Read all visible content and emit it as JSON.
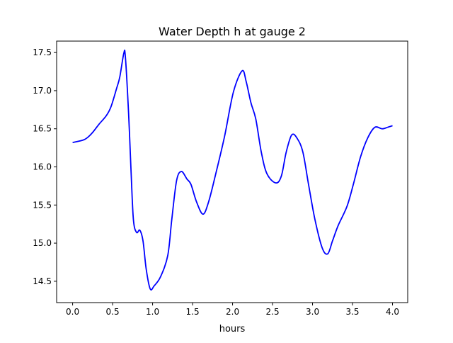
{
  "chart_data": {
    "type": "line",
    "title": "Water Depth h at gauge 2",
    "xlabel": "hours",
    "ylabel": "",
    "xlim": [
      -0.2,
      4.19
    ],
    "ylim": [
      14.22,
      17.65
    ],
    "grid": false,
    "xticks": [
      0.0,
      0.5,
      1.0,
      1.5,
      2.0,
      2.5,
      3.0,
      3.5,
      4.0
    ],
    "xtick_labels": [
      "0.0",
      "0.5",
      "1.0",
      "1.5",
      "2.0",
      "2.5",
      "3.0",
      "3.5",
      "4.0"
    ],
    "yticks": [
      14.5,
      15.0,
      15.5,
      16.0,
      16.5,
      17.0,
      17.5
    ],
    "ytick_labels": [
      "14.5",
      "15.0",
      "15.5",
      "16.0",
      "16.5",
      "17.0",
      "17.5"
    ],
    "series": [
      {
        "name": "h",
        "color": "#0000ff",
        "x": [
          0.0,
          0.15,
          0.24,
          0.33,
          0.42,
          0.48,
          0.55,
          0.59,
          0.64,
          0.66,
          0.7,
          0.73,
          0.76,
          0.8,
          0.84,
          0.88,
          0.92,
          0.97,
          1.02,
          1.1,
          1.19,
          1.24,
          1.3,
          1.36,
          1.43,
          1.48,
          1.55,
          1.63,
          1.7,
          1.79,
          1.9,
          2.01,
          2.12,
          2.17,
          2.23,
          2.29,
          2.36,
          2.43,
          2.54,
          2.61,
          2.67,
          2.74,
          2.81,
          2.88,
          2.95,
          3.03,
          3.12,
          3.19,
          3.25,
          3.32,
          3.43,
          3.51,
          3.6,
          3.69,
          3.78,
          3.87,
          3.94,
          4.0
        ],
        "y": [
          16.32,
          16.36,
          16.44,
          16.56,
          16.67,
          16.79,
          17.03,
          17.18,
          17.49,
          17.44,
          16.7,
          15.96,
          15.31,
          15.14,
          15.17,
          15.03,
          14.66,
          14.4,
          14.44,
          14.56,
          14.84,
          15.31,
          15.82,
          15.94,
          15.84,
          15.77,
          15.54,
          15.38,
          15.54,
          15.91,
          16.4,
          16.98,
          17.26,
          17.12,
          16.84,
          16.63,
          16.19,
          15.91,
          15.79,
          15.88,
          16.19,
          16.42,
          16.37,
          16.19,
          15.77,
          15.31,
          14.94,
          14.86,
          15.03,
          15.23,
          15.48,
          15.77,
          16.13,
          16.38,
          16.52,
          16.5,
          16.52,
          16.54
        ]
      }
    ]
  }
}
